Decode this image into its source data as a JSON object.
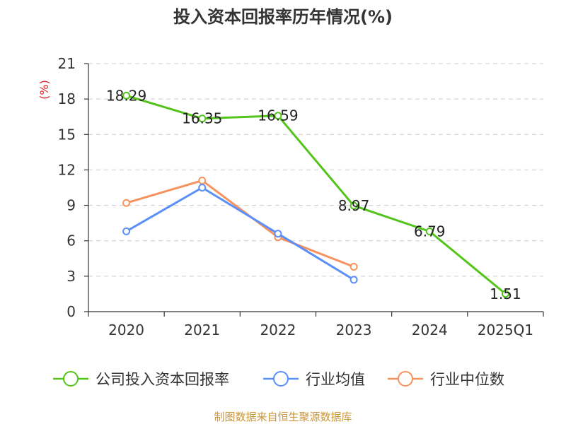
{
  "chart_data": {
    "type": "line",
    "title": "投入资本回报率历年情况(%)",
    "ylabel": "(%)",
    "xlabel": "",
    "categories": [
      "2020",
      "2021",
      "2022",
      "2023",
      "2024",
      "2025Q1"
    ],
    "ylim": [
      0,
      21
    ],
    "yticks": [
      0,
      3,
      6,
      9,
      12,
      15,
      18,
      21
    ],
    "grid": true,
    "legend_position": "bottom",
    "series": [
      {
        "name": "公司投入资本回报率",
        "color": "#52c41a",
        "values": [
          18.29,
          16.35,
          16.59,
          8.97,
          6.79,
          1.51
        ],
        "labels": [
          "18.29",
          "16.35",
          "16.59",
          "8.97",
          "6.79",
          "1.51"
        ]
      },
      {
        "name": "行业均值",
        "color": "#5b8ff9",
        "values": [
          6.8,
          10.5,
          6.6,
          2.7,
          null,
          null
        ]
      },
      {
        "name": "行业中位数",
        "color": "#f6925e",
        "values": [
          9.2,
          11.1,
          6.3,
          3.8,
          null,
          null
        ]
      }
    ]
  },
  "footer": {
    "source": "制图数据来自恒生聚源数据库"
  }
}
